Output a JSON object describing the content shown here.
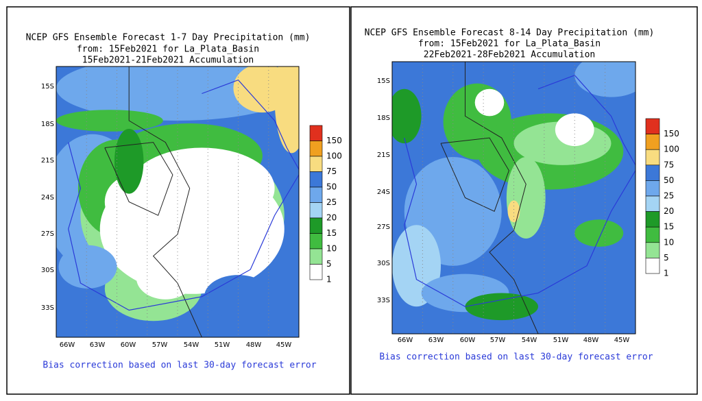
{
  "panels": [
    {
      "title_lines": [
        "NCEP GFS Ensemble Forecast 1-7 Day Precipitation (mm)",
        "from: 15Feb2021   for La_Plata_Basin",
        "15Feb2021-21Feb2021 Accumulation"
      ],
      "lat_labels": [
        "15S",
        "18S",
        "21S",
        "24S",
        "27S",
        "30S",
        "33S"
      ],
      "lon_labels": [
        "66W",
        "63W",
        "60W",
        "57W",
        "54W",
        "51W",
        "48W",
        "45W"
      ],
      "footer": "Bias correction based on last 30-day forecast error"
    },
    {
      "title_lines": [
        "NCEP GFS Ensemble Forecast 8-14 Day Precipitation (mm)",
        "from: 15Feb2021   for La_Plata_Basin",
        "22Feb2021-28Feb2021 Accumulation"
      ],
      "lat_labels": [
        "15S",
        "18S",
        "21S",
        "24S",
        "27S",
        "30S",
        "33S"
      ],
      "lon_labels": [
        "66W",
        "63W",
        "60W",
        "57W",
        "54W",
        "51W",
        "48W",
        "45W"
      ],
      "footer": "Bias correction based on last 30-day forecast error"
    }
  ],
  "legend": [
    {
      "label": "150",
      "color": "#e0301e"
    },
    {
      "label": "100",
      "color": "#f0a020"
    },
    {
      "label": "75",
      "color": "#f8dc80"
    },
    {
      "label": "50",
      "color": "#3c78d8"
    },
    {
      "label": "25",
      "color": "#6ea8ec"
    },
    {
      "label": "20",
      "color": "#a4d4f4"
    },
    {
      "label": "15",
      "color": "#1e9a28"
    },
    {
      "label": "10",
      "color": "#40bc40"
    },
    {
      "label": "5",
      "color": "#94e494"
    },
    {
      "label": "1",
      "color": "#ffffff"
    }
  ]
}
